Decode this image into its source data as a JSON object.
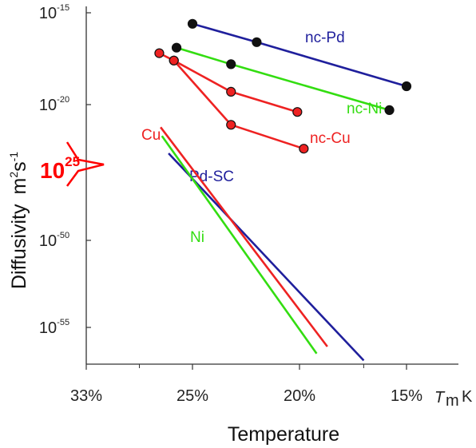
{
  "chart_data": {
    "type": "line",
    "xlabel": "Temperature",
    "x_unit_label": "T",
    "x_unit_sub": "m",
    "x_unit_k": "K",
    "ylabel": "Diffusivity",
    "y_unit": "m",
    "y_unit_sup1": "2",
    "y_unit_s": "s",
    "y_unit_sup2": "-1",
    "x_ticks": [
      {
        "label": "33%",
        "value": 33
      },
      {
        "label": "25%",
        "value": 25
      },
      {
        "label": "20%",
        "value": 20
      },
      {
        "label": "15%",
        "value": 15
      }
    ],
    "y_ticks": [
      {
        "base": "10",
        "exp": "-15",
        "value": -15
      },
      {
        "base": "10",
        "exp": "-20",
        "value": -20
      },
      {
        "base": "10",
        "exp": "-50",
        "value": -50
      },
      {
        "base": "10",
        "exp": "-55",
        "value": -55
      }
    ],
    "axis_break": {
      "base": "10",
      "exp": "25",
      "color": "#ff0000"
    },
    "series": [
      {
        "name": "nc-Pd",
        "color": "#1f1f9c",
        "markers": true,
        "x": [
          25.0,
          22.0,
          15.0
        ],
        "y": [
          -15.6,
          -16.6,
          -19.0
        ]
      },
      {
        "name": "nc-Ni",
        "color": "#33dd11",
        "markers": true,
        "x": [
          26.2,
          23.2,
          15.8
        ],
        "y": [
          -16.9,
          -17.8,
          -20.3
        ]
      },
      {
        "name": "nc-Cu",
        "color": "#ee2222",
        "markers": true,
        "x": [
          27.5,
          26.4,
          23.2,
          19.8
        ],
        "y": [
          -17.2,
          -17.6,
          -21.1,
          -22.4
        ]
      },
      {
        "name": "",
        "color": "#ee2222",
        "markers": true,
        "x": [
          26.4,
          23.2,
          20.1
        ],
        "y": [
          -17.6,
          -19.3,
          -20.4
        ]
      },
      {
        "name": "Pd-SC",
        "color": "#1f1f9c",
        "markers": false,
        "x": [
          26.8,
          17.0
        ],
        "y": [
          -45.0,
          -56.9
        ]
      },
      {
        "name": "Cu",
        "color": "#ee2222",
        "markers": false,
        "x": [
          27.4,
          18.7
        ],
        "y": [
          -43.5,
          -56.1
        ]
      },
      {
        "name": "Ni",
        "color": "#33dd11",
        "markers": false,
        "x": [
          27.3,
          19.2
        ],
        "y": [
          -44.0,
          -56.5
        ]
      }
    ],
    "grid": false,
    "legend": "inline labels"
  }
}
